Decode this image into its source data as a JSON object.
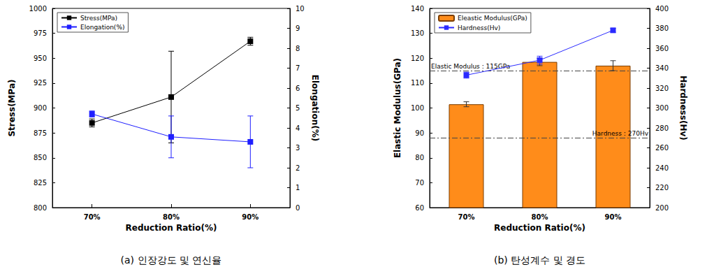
{
  "chart_data": [
    {
      "type": "line",
      "title": "(a) 인장강도 및 연신율",
      "x_label": "Reduction Ratio(%)",
      "y_label": "Stress(MPa)",
      "y2_label": "Elongation(%)",
      "categories": [
        "70%",
        "80%",
        "90%"
      ],
      "series": [
        {
          "name": "Stress(MPa)",
          "color": "#000000",
          "marker": "square",
          "line_style": "solid",
          "values": [
            885,
            911,
            967
          ],
          "errors": [
            4,
            46,
            4
          ]
        },
        {
          "name": "Elongation(%)",
          "color": "#1f1fff",
          "marker": "square",
          "line_style": "solid",
          "axis": "y2",
          "values": [
            4.7,
            3.55,
            3.3
          ],
          "errors": [
            0.15,
            1.05,
            1.3
          ]
        }
      ],
      "ylim": [
        800,
        1000
      ],
      "yticks": [
        800,
        825,
        850,
        875,
        900,
        925,
        950,
        975,
        1000
      ],
      "y2lim": [
        0,
        10
      ],
      "y2ticks": [
        0,
        1,
        2,
        3,
        4,
        5,
        6,
        7,
        8,
        9,
        10
      ],
      "legend": "upper left",
      "grid": false
    },
    {
      "type": "bar",
      "title": "(b) 탄성계수 및 경도",
      "x_label": "Reduction Ratio(%)",
      "y_label": "Elastic Modulus(GPa)",
      "y2_label": "Hardness(Hv)",
      "categories": [
        "70%",
        "80%",
        "90%"
      ],
      "series": [
        {
          "name": "Eleastic Modulus(GPa)",
          "type": "bar",
          "color": "#ff8c1a",
          "values": [
            101.5,
            118.5,
            117
          ],
          "errors": [
            1,
            1.5,
            2
          ]
        },
        {
          "name": "Hardness(Hv)",
          "type": "line",
          "color": "#2b2bff",
          "marker": "square",
          "line_style": "solid",
          "axis": "y2",
          "values": [
            333,
            348,
            378
          ],
          "errors": [
            3,
            4,
            2
          ]
        }
      ],
      "ylim": [
        60,
        140
      ],
      "yticks": [
        60,
        70,
        80,
        90,
        100,
        110,
        120,
        130,
        140
      ],
      "y2lim": [
        200,
        400
      ],
      "y2ticks": [
        200,
        220,
        240,
        260,
        280,
        300,
        320,
        340,
        360,
        380,
        400
      ],
      "annotations": [
        {
          "text": "Elastic Modulus : 115GPa",
          "value": 115,
          "axis": "y"
        },
        {
          "text": "Hardness : 270Hv",
          "value": 270,
          "axis": "y2"
        }
      ],
      "legend": "upper left",
      "grid": false
    }
  ]
}
